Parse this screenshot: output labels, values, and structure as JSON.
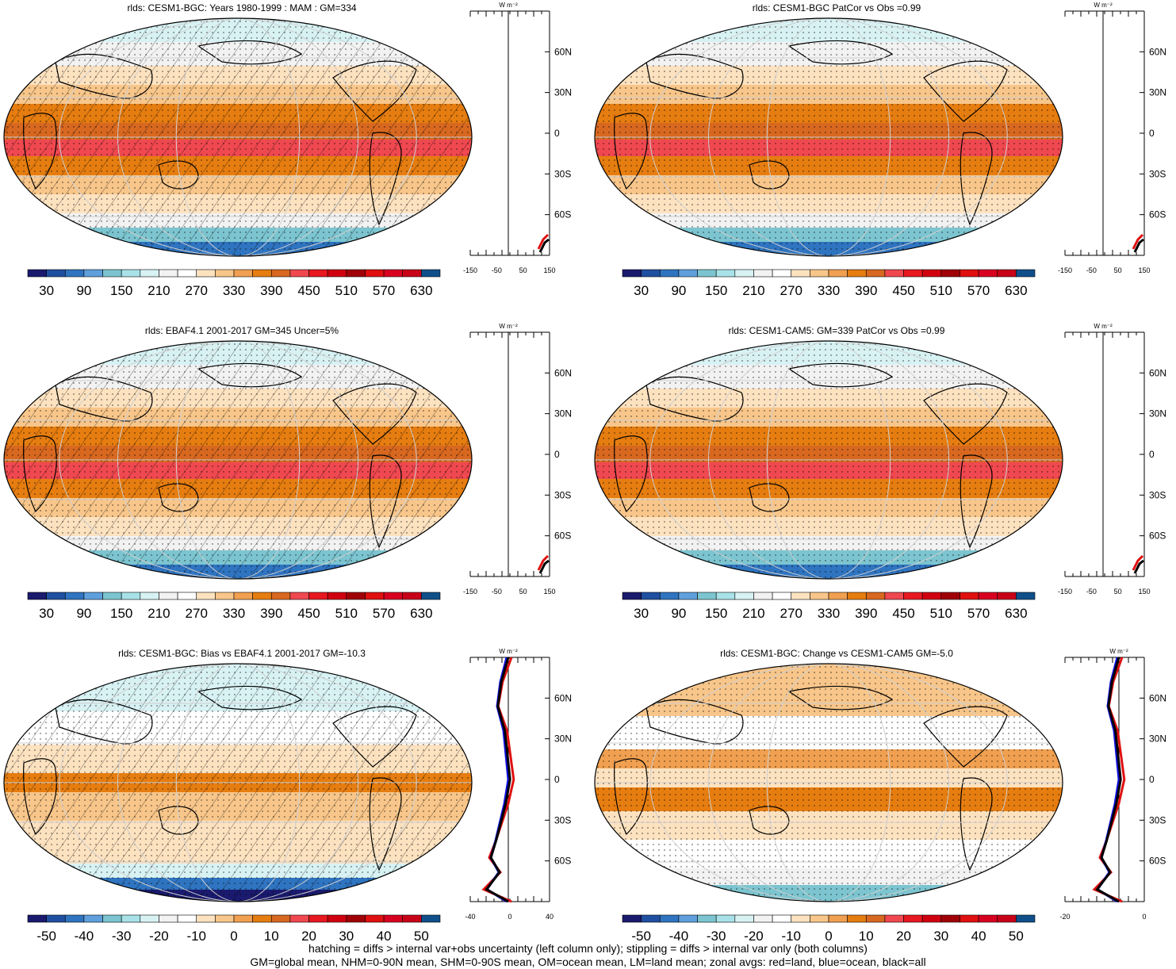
{
  "panels": [
    {
      "title": "rlds: CESM1-BGC: Years 1980-1999 : MAM : GM=334",
      "hatched": true,
      "kind": "abs",
      "zonal": {
        "unit": "W m⁻²",
        "ticks": [
          "-150",
          "-50",
          "50",
          "150"
        ]
      }
    },
    {
      "title": "rlds: CESM1-BGC PatCor vs Obs =0.99",
      "hatched": false,
      "kind": "abs",
      "zonal": {
        "unit": "W m⁻²",
        "ticks": [
          "-150",
          "-50",
          "50",
          "150"
        ]
      }
    },
    {
      "title": "rlds: EBAF4.1 2001-2017 GM=345 Uncer=5%",
      "hatched": true,
      "kind": "abs",
      "zonal": {
        "unit": "W m⁻²",
        "ticks": [
          "-150",
          "-50",
          "50",
          "150"
        ]
      }
    },
    {
      "title": "rlds: CESM1-CAM5: GM=339 PatCor vs Obs =0.99",
      "hatched": false,
      "kind": "abs",
      "zonal": {
        "unit": "W m⁻²",
        "ticks": [
          "-150",
          "-50",
          "50",
          "150"
        ]
      }
    },
    {
      "title": "rlds: CESM1-BGC: Bias vs EBAF4.1 2001-2017 GM=-10.3",
      "hatched": true,
      "kind": "bias",
      "zonal": {
        "unit": "W m⁻²",
        "ticks": [
          "-40",
          "0",
          "40"
        ]
      }
    },
    {
      "title": "rlds: CESM1-BGC: Change vs CESM1-CAM5 GM=-5.0",
      "hatched": false,
      "kind": "change",
      "zonal": {
        "unit": "W m⁻²",
        "ticks": [
          "-20",
          "0"
        ]
      }
    }
  ],
  "lat_labels": [
    "60N",
    "30N",
    "0",
    "30S",
    "60S"
  ],
  "colorbars": {
    "abs": {
      "labels": [
        "30",
        "90",
        "150",
        "210",
        "270",
        "330",
        "390",
        "450",
        "510",
        "570",
        "630"
      ],
      "colors": [
        "#1a1a6e",
        "#1f4fa0",
        "#2f74c0",
        "#5fa0dc",
        "#7cc5d0",
        "#a8e2e8",
        "#d8f2f4",
        "#f2f2f2",
        "#ffffff",
        "#fde2c0",
        "#f8c68a",
        "#f0a050",
        "#e67d10",
        "#d86820",
        "#f04850",
        "#e81820",
        "#d00010",
        "#a00008",
        "#e01010",
        "#d80020",
        "#c80018",
        "#10508a"
      ]
    },
    "diff": {
      "labels": [
        "-50",
        "-40",
        "-30",
        "-20",
        "-10",
        "0",
        "10",
        "20",
        "30",
        "40",
        "50"
      ],
      "colors": [
        "#1a1a6e",
        "#1f4fa0",
        "#2f74c0",
        "#5fa0dc",
        "#7cc5d0",
        "#a8e2e8",
        "#d8f2f4",
        "#f2f2f2",
        "#ffffff",
        "#fde2c0",
        "#f8c68a",
        "#f0a050",
        "#e67d10",
        "#d86820",
        "#f04850",
        "#e81820",
        "#d00010",
        "#a00008",
        "#e01010",
        "#d80020",
        "#c80018",
        "#10508a"
      ]
    }
  },
  "footer": {
    "line1": "hatching = diffs > internal var+obs uncertainty (left column only); stippling = diffs > internal var only (both columns)",
    "line2": "GM=global mean, NHM=0-90N mean, SHM=0-90S mean, OM=ocean mean, LM=land mean; zonal avgs: red=land, blue=ocean, black=all"
  }
}
